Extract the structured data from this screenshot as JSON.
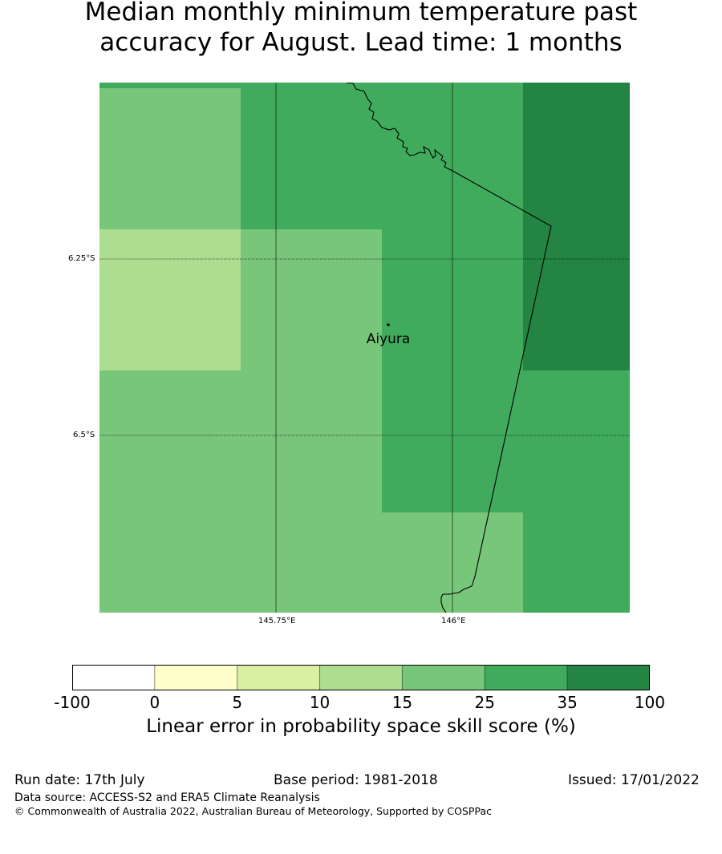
{
  "title_line1": "Median monthly minimum temperature past",
  "title_line2": "accuracy for August. Lead time: 1 months",
  "map": {
    "place": "Aiyura",
    "lat_labels": [
      "6.25°S",
      "6.5°S"
    ],
    "lon_labels": [
      "145.75°E",
      "146°E"
    ]
  },
  "colorbar": {
    "label": "Linear error in probability space skill score (%)",
    "ticks": [
      "-100",
      "0",
      "5",
      "10",
      "15",
      "25",
      "35",
      "100"
    ],
    "colors": [
      "#ffffff",
      "#ffffcc",
      "#d9f0a3",
      "#addd8e",
      "#78c679",
      "#41ab5d",
      "#238443"
    ]
  },
  "footer": {
    "run_date": "Run date: 17th July",
    "base_period": "Base period: 1981-2018",
    "issued": "Issued: 17/01/2022",
    "data_source": "Data source: ACCESS-S2 and ERA5 Climate Reanalysis",
    "copyright": "© Commonwealth of Australia 2022, Australian Bureau of Meteorology, Supported by COSPPac"
  }
}
